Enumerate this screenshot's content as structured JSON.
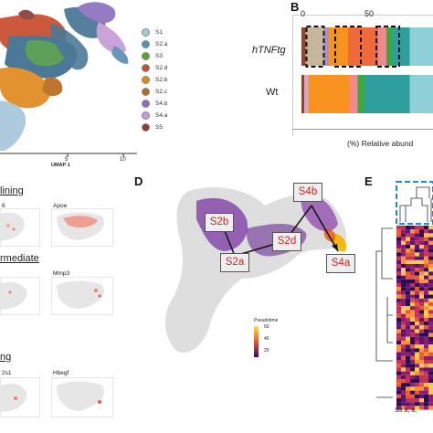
{
  "panels": {
    "a": {
      "xaxis_label": "UMAP 1",
      "tick_labels": [
        "5",
        "10"
      ],
      "legend": [
        {
          "label": "S1",
          "color": "#a8c6dc"
        },
        {
          "label": "S2.a",
          "color": "#5b8fb3"
        },
        {
          "label": "S3",
          "color": "#58a23a"
        },
        {
          "label": "S2.d",
          "color": "#c84b2b"
        },
        {
          "label": "S2.b",
          "color": "#e08a1f"
        },
        {
          "label": "S2.c",
          "color": "#b86a1e"
        },
        {
          "label": "S4.b",
          "color": "#8d6fbf"
        },
        {
          "label": "S4.a",
          "color": "#c79ad7"
        },
        {
          "label": "S5",
          "color": "#8a3b3b"
        }
      ]
    },
    "b": {
      "letter": "B",
      "ticks": [
        "0",
        "50"
      ],
      "rows": [
        "hTNFtg",
        "Wt"
      ],
      "xlabel": "(%) Relative abund",
      "chart_data": {
        "type": "bar",
        "orientation": "horizontal",
        "stacked": true,
        "categories": [
          "hTNFtg",
          "Wt"
        ],
        "series": [
          {
            "color": "#8a4a2a",
            "values": [
              3,
              2
            ]
          },
          {
            "color": "#d2a9d6",
            "values": [
              0,
              3
            ]
          },
          {
            "color": "#c7b79a",
            "values": [
              13,
              0
            ]
          },
          {
            "color": "#a88fc9",
            "values": [
              4,
              0
            ]
          },
          {
            "color": "#f7931e",
            "values": [
              14,
              30
            ]
          },
          {
            "color": "#ef6a3a",
            "values": [
              22,
              0
            ]
          },
          {
            "color": "#f08a8a",
            "values": [
              6,
              6
            ]
          },
          {
            "color": "#3aa845",
            "values": [
              4,
              5
            ]
          },
          {
            "color": "#2e9e9e",
            "values": [
              13,
              33
            ]
          },
          {
            "color": "#8fd0d8",
            "values": [
              21,
              21
            ]
          }
        ]
      }
    },
    "c": {
      "sections": [
        {
          "title": "lining",
          "genes": [
            "6",
            "Apoe"
          ]
        },
        {
          "title": "rmediate",
          "genes": [
            "",
            "Mmp3"
          ]
        },
        {
          "title": "ng",
          "genes": [
            "2s1",
            "Hbegf"
          ]
        }
      ]
    },
    "d": {
      "letter": "D",
      "nodes": [
        "S2b",
        "S4b",
        "S2d",
        "S2a",
        "S4a"
      ],
      "colorbar_title": "Pseudotime",
      "colorbar_ticks": [
        "60",
        "40",
        "20"
      ]
    },
    "e": {
      "letter": "E",
      "footer_text": "S3  b,  a,"
    }
  }
}
